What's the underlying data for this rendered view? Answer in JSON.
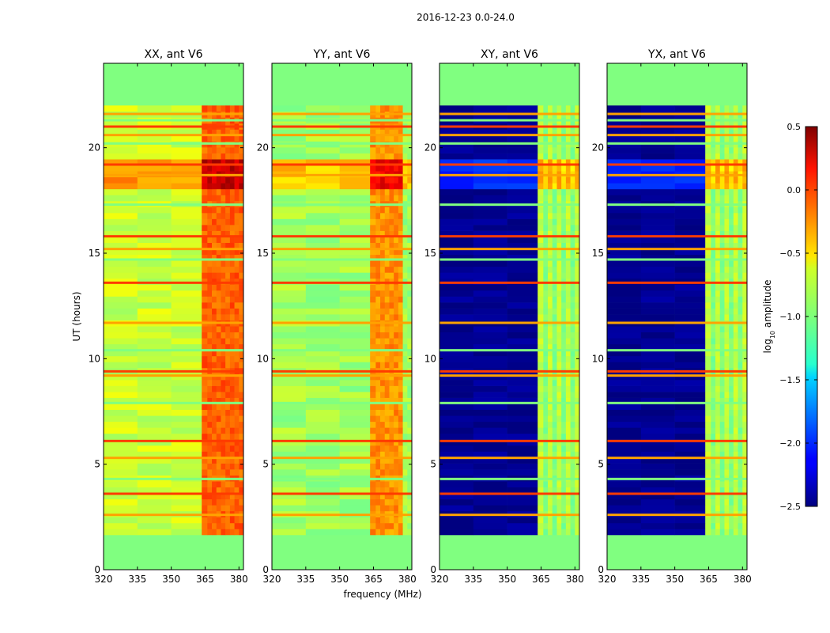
{
  "chart_data": {
    "type": "heatmap",
    "suptitle": "2016-12-23 0.0-24.0",
    "xlabel": "frequency (MHz)",
    "ylabel": "UT (hours)",
    "xlim": [
      320,
      382
    ],
    "ylim": [
      0,
      24
    ],
    "xticks": [
      320,
      335,
      350,
      365,
      380
    ],
    "yticks": [
      0,
      5,
      10,
      15,
      20
    ],
    "data_extent_hours": [
      1.65,
      22.0
    ],
    "colormap": "jet",
    "panels": [
      {
        "title": "XX, ant V6",
        "kind": "auto",
        "base_log_amplitude": -0.78,
        "strong_band_log_amplitude": -0.15,
        "strong_band_mhz": [
          363.5,
          381
        ]
      },
      {
        "title": "YY, ant V6",
        "kind": "auto",
        "base_log_amplitude": -0.9,
        "strong_band_log_amplitude": -0.3,
        "strong_band_mhz": [
          363.5,
          377
        ]
      },
      {
        "title": "XY, ant V6",
        "kind": "cross",
        "base_log_amplitude": -2.45,
        "strong_band_log_amplitude": -0.8,
        "strong_band_mhz": [
          363.5,
          380
        ]
      },
      {
        "title": "YX, ant V6",
        "kind": "cross",
        "base_log_amplitude": -2.45,
        "strong_band_log_amplitude": -0.8,
        "strong_band_mhz": [
          363.5,
          380
        ]
      }
    ],
    "flagged_fill_log_amplitude": -1.0,
    "rfi_row_hours": [
      2.6,
      3.6,
      4.3,
      5.3,
      6.1,
      7.9,
      9.2,
      9.4,
      10.4,
      11.7,
      13.6,
      14.7,
      15.2,
      15.8,
      17.3,
      18.7,
      19.2,
      20.2,
      20.6,
      21.0,
      21.3,
      21.6
    ],
    "colorbar": {
      "label": "log10 amplitude",
      "label_base": "log",
      "label_sub": "10",
      "label_rest": " amplitude",
      "vmin": -2.5,
      "vmax": 0.5,
      "ticks": [
        "0.5",
        "0.0",
        "−0.5",
        "−1.0",
        "−1.5",
        "−2.0",
        "−2.5"
      ],
      "tick_values": [
        0.5,
        0.0,
        -0.5,
        -1.0,
        -1.5,
        -2.0,
        -2.5
      ]
    }
  }
}
